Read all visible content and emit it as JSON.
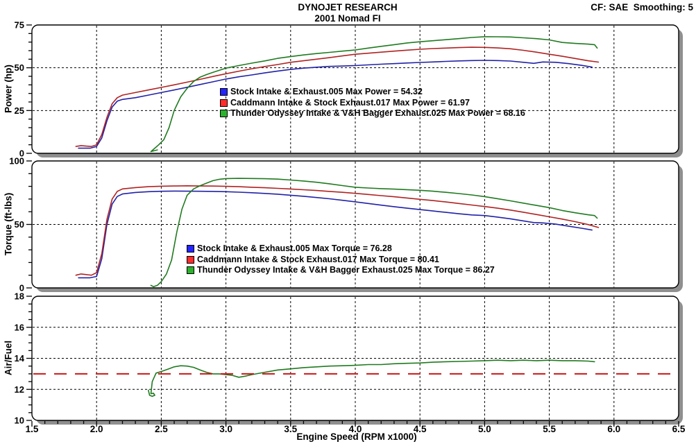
{
  "header": {
    "title": "DYNOJET RESEARCH",
    "subtitle": "2001 Nomad FI",
    "correction_info": "CF: SAE  Smoothing: 5"
  },
  "axes": {
    "x": {
      "label": "Engine Speed (RPM x1000)",
      "min": 1.5,
      "max": 6.5,
      "major_step": 0.5,
      "minor_step": 0.1,
      "tick_labels": [
        "1.5",
        "2.0",
        "2.5",
        "3.0",
        "3.5",
        "4.0",
        "4.5",
        "5.0",
        "5.5",
        "6.0",
        "6.5"
      ]
    },
    "panels": [
      {
        "key": "power",
        "ymin": 0,
        "ymax": 75,
        "major": 25,
        "minor": 5,
        "grid": [
          25,
          50
        ],
        "tick_labels": [
          "0",
          "25",
          "50",
          "75"
        ]
      },
      {
        "key": "torque",
        "ymin": 0,
        "ymax": 100,
        "major": 50,
        "minor": 10,
        "grid": [
          50
        ],
        "tick_labels": [
          "0",
          "50",
          "100"
        ]
      },
      {
        "key": "airfuel",
        "ymin": 10,
        "ymax": 18,
        "major": 2,
        "minor": 0.5,
        "grid": [
          12,
          14,
          16
        ],
        "tick_labels": [
          "10",
          "12",
          "14",
          "16",
          "18"
        ],
        "target_line": {
          "y": 13,
          "color": "#cc1515",
          "style": "long-dash"
        }
      }
    ]
  },
  "colors": {
    "curve_stock": "#2121a8",
    "curve_caddmann": "#b02222",
    "curve_thunder": "#1f7a1f",
    "legend_swatches": [
      "#2424ff",
      "#ff2c2c",
      "#2cb22c"
    ],
    "af_target": "#cc1515",
    "panel_shadow": "#8f8f8f",
    "grid": "#000000",
    "panel_fill": "#ffffff"
  },
  "chart_data": [
    {
      "type": "line",
      "title": "Power vs Engine Speed",
      "ylabel": "Power (hp)",
      "xlabel": "",
      "xlim": [
        1.5,
        6.5
      ],
      "ylim": [
        0,
        75
      ],
      "grid": "on",
      "legend_position": "inside-middle-left",
      "legend": [
        "Stock Intake & Exhaust.005 Max Power = 54.32",
        "Caddmann Intake & Stock Exhaust.017 Max Power = 61.97",
        "Thunder Odyssey Intake & V&H Bagger Exhaust.025 Max Power = 68.16"
      ],
      "max_values": {
        "stock": 54.32,
        "caddmann": 61.97,
        "thunder": 68.16
      },
      "series": [
        {
          "id": "stock",
          "name": "Stock Intake & Exhaust.005",
          "color": "#2121a8",
          "x": [
            1.86,
            1.9,
            1.95,
            2.0,
            2.04,
            2.08,
            2.12,
            2.16,
            2.2,
            2.3,
            2.4,
            2.5,
            2.6,
            2.7,
            2.8,
            2.9,
            3.0,
            3.1,
            3.2,
            3.3,
            3.4,
            3.5,
            3.6,
            3.7,
            3.8,
            3.9,
            4.0,
            4.1,
            4.2,
            4.3,
            4.4,
            4.5,
            4.6,
            4.7,
            4.8,
            4.9,
            5.0,
            5.1,
            5.2,
            5.3,
            5.38,
            5.45,
            5.55,
            5.65,
            5.75,
            5.83
          ],
          "y": [
            3,
            3,
            3,
            4,
            9,
            19,
            27,
            30.5,
            31.5,
            32.5,
            34,
            35.5,
            37,
            38.6,
            40.2,
            41.8,
            43.4,
            44.7,
            45.8,
            47,
            48.1,
            49,
            49.8,
            50.3,
            50.8,
            51,
            51.3,
            51.7,
            52.1,
            52.4,
            52.8,
            53.1,
            53.4,
            53.7,
            54,
            54.2,
            54.32,
            54.2,
            53.9,
            53.2,
            52.6,
            53.4,
            53.2,
            52.4,
            51.4,
            50.4
          ]
        },
        {
          "id": "caddmann",
          "name": "Caddmann Intake & Stock Exhaust.017",
          "color": "#b02222",
          "x": [
            1.84,
            1.88,
            1.92,
            1.96,
            2.0,
            2.04,
            2.08,
            2.12,
            2.16,
            2.2,
            2.3,
            2.4,
            2.5,
            2.6,
            2.7,
            2.8,
            2.9,
            3.0,
            3.1,
            3.2,
            3.3,
            3.4,
            3.5,
            3.6,
            3.7,
            3.8,
            3.9,
            4.0,
            4.1,
            4.2,
            4.3,
            4.4,
            4.5,
            4.6,
            4.7,
            4.8,
            4.9,
            5.0,
            5.1,
            5.2,
            5.3,
            5.4,
            5.5,
            5.6,
            5.7,
            5.8,
            5.88
          ],
          "y": [
            4,
            4.5,
            4.2,
            4,
            5,
            11,
            21,
            29,
            32.5,
            34,
            35.5,
            37,
            38.5,
            40,
            41.6,
            43.2,
            44.9,
            46.5,
            48,
            49.4,
            50.7,
            51.9,
            53.2,
            54.1,
            55,
            55.9,
            56.9,
            57.9,
            58.5,
            59.1,
            59.7,
            60.3,
            60.8,
            61.2,
            61.5,
            61.8,
            61.97,
            61.9,
            61.6,
            61.1,
            60.2,
            59.1,
            57.9,
            56.7,
            55.4,
            54.1,
            53.3
          ]
        },
        {
          "id": "thunder",
          "name": "Thunder Odyssey Intake & V&H Bagger Exhaust.025",
          "color": "#1f7a1f",
          "x": [
            2.47,
            2.42,
            2.45,
            2.48,
            2.52,
            2.56,
            2.6,
            2.65,
            2.7,
            2.75,
            2.8,
            2.85,
            2.9,
            3.0,
            3.1,
            3.2,
            3.3,
            3.4,
            3.5,
            3.6,
            3.7,
            3.8,
            3.9,
            4.0,
            4.1,
            4.2,
            4.3,
            4.4,
            4.5,
            4.6,
            4.7,
            4.8,
            4.9,
            5.0,
            5.1,
            5.2,
            5.3,
            5.4,
            5.5,
            5.6,
            5.7,
            5.8,
            5.85,
            5.87
          ],
          "y": [
            2,
            1,
            3,
            5,
            8,
            15,
            25,
            33,
            38,
            42,
            44.5,
            46,
            47.3,
            49.8,
            51.3,
            52.7,
            54,
            55.5,
            56.5,
            57.5,
            58.3,
            59,
            59.7,
            60.4,
            61.5,
            62.5,
            63.5,
            64.5,
            65.2,
            65.8,
            66.4,
            67,
            67.7,
            68.16,
            68.1,
            68,
            67.5,
            67,
            66.3,
            64.8,
            64.2,
            63.8,
            63.5,
            61.5
          ]
        }
      ]
    },
    {
      "type": "line",
      "title": "Torque vs Engine Speed",
      "ylabel": "Torque (ft-lbs)",
      "xlabel": "",
      "xlim": [
        1.5,
        6.5
      ],
      "ylim": [
        0,
        100
      ],
      "grid": "on",
      "legend_position": "inside-middle-left",
      "legend": [
        "Stock Intake & Exhaust.005 Max Torque = 76.28",
        "Caddmann Intake & Stock Exhaust.017 Max Torque = 80.41",
        "Thunder Odyssey Intake & V&H Bagger Exhaust.025 Max Torque = 86.27"
      ],
      "max_values": {
        "stock": 76.28,
        "caddmann": 80.41,
        "thunder": 86.27
      },
      "series": [
        {
          "id": "stock",
          "name": "Stock Intake & Exhaust.005",
          "color": "#2121a8",
          "x": [
            1.86,
            1.9,
            1.95,
            2.0,
            2.04,
            2.08,
            2.12,
            2.16,
            2.2,
            2.3,
            2.4,
            2.5,
            2.6,
            2.7,
            2.8,
            2.9,
            3.0,
            3.1,
            3.2,
            3.3,
            3.4,
            3.5,
            3.6,
            3.7,
            3.8,
            3.9,
            4.0,
            4.1,
            4.2,
            4.3,
            4.4,
            4.5,
            4.6,
            4.7,
            4.8,
            4.9,
            5.0,
            5.1,
            5.2,
            5.3,
            5.38,
            5.45,
            5.55,
            5.65,
            5.75,
            5.83
          ],
          "y": [
            8,
            8,
            8,
            9,
            23,
            50,
            66,
            72,
            74,
            75.2,
            75.8,
            76.1,
            76.28,
            76.2,
            76.1,
            76,
            75.8,
            75.4,
            75,
            74.4,
            73.8,
            73,
            72.2,
            71.2,
            70.2,
            69,
            67.8,
            66.5,
            65.2,
            64,
            62.8,
            61.7,
            60.6,
            59.5,
            58.4,
            57.5,
            57,
            55.8,
            54.4,
            52.8,
            51.5,
            51.2,
            50.2,
            48.6,
            47,
            45.6
          ]
        },
        {
          "id": "caddmann",
          "name": "Caddmann Intake & Stock Exhaust.017",
          "color": "#b02222",
          "x": [
            1.84,
            1.88,
            1.92,
            1.96,
            2.0,
            2.04,
            2.08,
            2.12,
            2.16,
            2.2,
            2.3,
            2.4,
            2.5,
            2.6,
            2.7,
            2.8,
            2.9,
            3.0,
            3.1,
            3.2,
            3.3,
            3.4,
            3.5,
            3.6,
            3.7,
            3.8,
            3.9,
            4.0,
            4.1,
            4.2,
            4.3,
            4.4,
            4.5,
            4.6,
            4.7,
            4.8,
            4.9,
            5.0,
            5.1,
            5.2,
            5.3,
            5.4,
            5.5,
            5.6,
            5.7,
            5.8,
            5.88
          ],
          "y": [
            10,
            11,
            10.5,
            10,
            12,
            27,
            54,
            70,
            76,
            78,
            79,
            79.7,
            80.1,
            80.3,
            80.41,
            80.3,
            80.2,
            80,
            79.7,
            79.3,
            78.9,
            78.4,
            77.9,
            77.3,
            76.7,
            76,
            75.3,
            74.5,
            73.6,
            72.7,
            71.8,
            70.8,
            69.8,
            68.8,
            67.7,
            66.5,
            65.3,
            64.1,
            62.8,
            61.3,
            59.6,
            57.8,
            56,
            54.2,
            52.2,
            49.9,
            47.6
          ]
        },
        {
          "id": "thunder",
          "name": "Thunder Odyssey Intake & V&H Bagger Exhaust.025",
          "color": "#1f7a1f",
          "x": [
            2.42,
            2.44,
            2.47,
            2.5,
            2.54,
            2.58,
            2.62,
            2.66,
            2.7,
            2.75,
            2.8,
            2.85,
            2.9,
            2.95,
            3.0,
            3.1,
            3.2,
            3.3,
            3.4,
            3.5,
            3.6,
            3.7,
            3.8,
            3.9,
            4.0,
            4.1,
            4.2,
            4.3,
            4.4,
            4.5,
            4.6,
            4.7,
            4.8,
            4.9,
            5.0,
            5.1,
            5.2,
            5.3,
            5.4,
            5.5,
            5.6,
            5.7,
            5.8,
            5.85,
            5.87
          ],
          "y": [
            2,
            1,
            2,
            5,
            11,
            22,
            44,
            62,
            73,
            78,
            80.5,
            82.5,
            84.5,
            85.6,
            86.1,
            86.27,
            86.2,
            86,
            85.7,
            85,
            84.2,
            83.2,
            82,
            80.6,
            79.3,
            78.7,
            78.2,
            77.8,
            77.4,
            76.9,
            76.2,
            75.3,
            74.3,
            73.2,
            71.9,
            70.3,
            68.6,
            66.8,
            65,
            63.2,
            61,
            59.2,
            57.6,
            57,
            55
          ]
        }
      ]
    },
    {
      "type": "line",
      "title": "Air/Fuel vs Engine Speed",
      "ylabel": "Air/Fuel",
      "xlabel": "Engine Speed (RPM x1000)",
      "xlim": [
        1.5,
        6.5
      ],
      "ylim": [
        10,
        18
      ],
      "grid": "on",
      "target_line": 13,
      "legend": [],
      "series": [
        {
          "id": "thunder",
          "name": "Thunder Odyssey Intake & V&H Bagger Exhaust.025",
          "color": "#1f7a1f",
          "x": [
            2.4,
            2.41,
            2.43,
            2.45,
            2.44,
            2.42,
            2.43,
            2.46,
            2.5,
            2.55,
            2.6,
            2.65,
            2.7,
            2.75,
            2.8,
            2.85,
            2.9,
            2.95,
            3.0,
            3.05,
            3.1,
            3.15,
            3.2,
            3.3,
            3.4,
            3.5,
            3.6,
            3.7,
            3.8,
            3.9,
            4.0,
            4.1,
            4.2,
            4.3,
            4.4,
            4.5,
            4.6,
            4.7,
            4.8,
            4.9,
            5.0,
            5.1,
            5.2,
            5.3,
            5.4,
            5.5,
            5.6,
            5.7,
            5.8,
            5.85
          ],
          "y": [
            11.95,
            11.62,
            11.55,
            11.62,
            11.75,
            11.72,
            12.5,
            13.05,
            13.15,
            13.3,
            13.45,
            13.52,
            13.5,
            13.42,
            13.25,
            13.1,
            13.0,
            13.0,
            12.95,
            12.9,
            12.78,
            12.85,
            12.95,
            13.1,
            13.25,
            13.32,
            13.4,
            13.45,
            13.5,
            13.52,
            13.55,
            13.6,
            13.6,
            13.65,
            13.68,
            13.7,
            13.75,
            13.78,
            13.8,
            13.82,
            13.85,
            13.88,
            13.85,
            13.88,
            13.85,
            13.88,
            13.85,
            13.85,
            13.82,
            13.78
          ]
        }
      ]
    }
  ]
}
